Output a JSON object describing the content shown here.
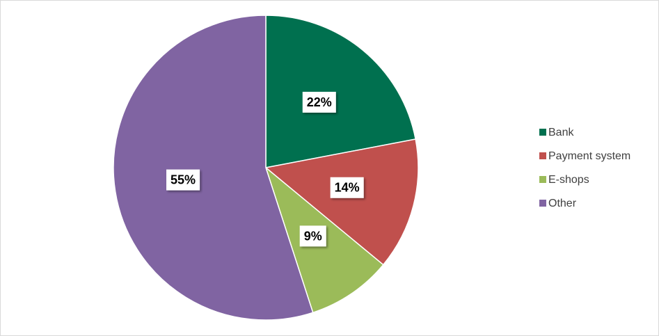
{
  "chart_data": {
    "type": "pie",
    "categories": [
      "Bank",
      "Payment system",
      "E-shops",
      "Other"
    ],
    "values": [
      22,
      14,
      9,
      55
    ],
    "value_labels": [
      "22%",
      "14%",
      "9%",
      "55%"
    ],
    "colors": [
      "#00704f",
      "#c0504d",
      "#9bbb59",
      "#8064a2"
    ],
    "legend": "right"
  }
}
